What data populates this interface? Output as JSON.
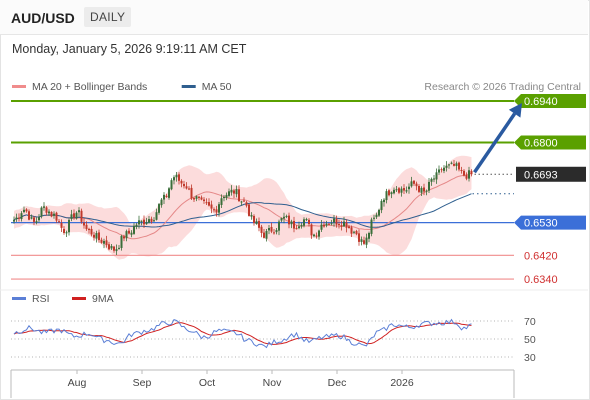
{
  "header": {
    "symbol": "AUD/USD",
    "timeframe": "DAILY"
  },
  "datetime": "Monday, January 5, 2026 9:19:11 AM CET",
  "source": "Research © 2026 Trading Central",
  "colors": {
    "up_candle": "#3a6e3a",
    "down_candle": "#c0392b",
    "bollinger_band": "#fbd6d6",
    "ma20": "#e58888",
    "ma50": "#2f5f8f",
    "target_line": "#5aa000",
    "pivot_line": "#3b6fd8",
    "support_line": "#f08c8c",
    "rsi": "#5b7fd6",
    "rsi_ma": "#d02020",
    "arrow": "#2a5aa0"
  },
  "chart_data": [
    {
      "type": "candlestick",
      "name": "price",
      "x_ticks": [
        "Aug",
        "Sep",
        "Oct",
        "Nov",
        "Dec",
        "2026"
      ],
      "ylim": [
        0.632,
        0.696
      ],
      "legend": [
        {
          "label": "MA 20 + Bollinger Bands",
          "color": "#f08c8c"
        },
        {
          "label": "MA 50",
          "color": "#2f5f8f"
        }
      ],
      "levels": [
        {
          "value": 0.694,
          "label": "0.6940",
          "kind": "target",
          "color": "#5aa000"
        },
        {
          "value": 0.68,
          "label": "0.6800",
          "kind": "target",
          "color": "#5aa000"
        },
        {
          "value": 0.6693,
          "label": "0.6693",
          "kind": "last",
          "color": "#2b2b2b"
        },
        {
          "value": 0.653,
          "label": "0.6530",
          "kind": "pivot",
          "color": "#3b6fd8"
        },
        {
          "value": 0.642,
          "label": "0.6420",
          "kind": "support",
          "color": "#f08c8c"
        },
        {
          "value": 0.634,
          "label": "0.6340",
          "kind": "support",
          "color": "#f08c8c"
        }
      ],
      "anchors": [
        [
          0,
          0.654
        ],
        [
          4,
          0.6575
        ],
        [
          8,
          0.653
        ],
        [
          12,
          0.658
        ],
        [
          16,
          0.6555
        ],
        [
          20,
          0.6505
        ],
        [
          25,
          0.6565
        ],
        [
          30,
          0.65
        ],
        [
          35,
          0.647
        ],
        [
          40,
          0.644
        ],
        [
          45,
          0.649
        ],
        [
          50,
          0.653
        ],
        [
          55,
          0.6545
        ],
        [
          60,
          0.661
        ],
        [
          64,
          0.6685
        ],
        [
          68,
          0.666
        ],
        [
          72,
          0.6615
        ],
        [
          76,
          0.659
        ],
        [
          80,
          0.657
        ],
        [
          84,
          0.6625
        ],
        [
          88,
          0.6635
        ],
        [
          92,
          0.66
        ],
        [
          96,
          0.653
        ],
        [
          100,
          0.649
        ],
        [
          104,
          0.651
        ],
        [
          108,
          0.6545
        ],
        [
          112,
          0.652
        ],
        [
          116,
          0.654
        ],
        [
          120,
          0.649
        ],
        [
          124,
          0.653
        ],
        [
          128,
          0.6535
        ],
        [
          132,
          0.653
        ],
        [
          136,
          0.65
        ],
        [
          140,
          0.646
        ],
        [
          144,
          0.654
        ],
        [
          148,
          0.662
        ],
        [
          152,
          0.665
        ],
        [
          156,
          0.664
        ],
        [
          160,
          0.666
        ],
        [
          164,
          0.663
        ],
        [
          168,
          0.668
        ],
        [
          172,
          0.6715
        ],
        [
          176,
          0.672
        ],
        [
          180,
          0.669
        ],
        [
          183,
          0.6693
        ]
      ],
      "arrow": {
        "from": [
          183,
          0.6693
        ],
        "to": [
          200,
          0.694
        ]
      }
    },
    {
      "type": "line",
      "name": "rsi",
      "legend": [
        {
          "label": "RSI",
          "color": "#5b7fd6"
        },
        {
          "label": "9MA",
          "color": "#d02020"
        }
      ],
      "ylim": [
        20,
        80
      ],
      "y_ticks": [
        70,
        50,
        30
      ],
      "anchors": [
        [
          0,
          57
        ],
        [
          6,
          62
        ],
        [
          12,
          57
        ],
        [
          18,
          60
        ],
        [
          24,
          53
        ],
        [
          30,
          56
        ],
        [
          36,
          49
        ],
        [
          42,
          45
        ],
        [
          48,
          56
        ],
        [
          54,
          60
        ],
        [
          60,
          67
        ],
        [
          64,
          69
        ],
        [
          70,
          60
        ],
        [
          76,
          52
        ],
        [
          82,
          59
        ],
        [
          88,
          57
        ],
        [
          94,
          48
        ],
        [
          100,
          42
        ],
        [
          106,
          48
        ],
        [
          112,
          55
        ],
        [
          118,
          47
        ],
        [
          124,
          52
        ],
        [
          130,
          54
        ],
        [
          136,
          46
        ],
        [
          140,
          42
        ],
        [
          146,
          58
        ],
        [
          152,
          66
        ],
        [
          158,
          63
        ],
        [
          164,
          67
        ],
        [
          170,
          68
        ],
        [
          176,
          69
        ],
        [
          180,
          62
        ],
        [
          183,
          65
        ]
      ]
    }
  ]
}
